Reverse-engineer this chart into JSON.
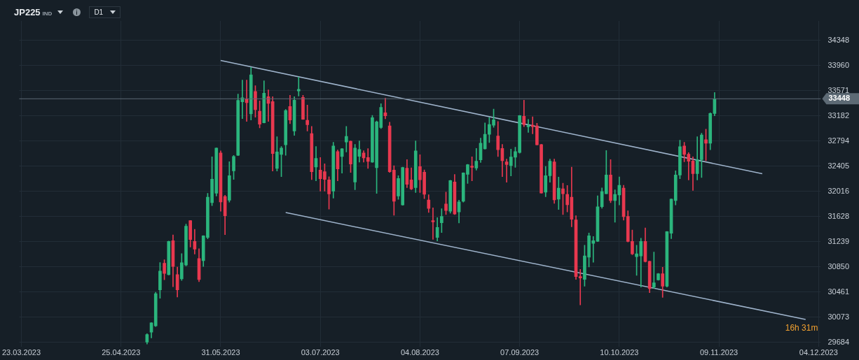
{
  "chart_data": {
    "type": "candlestick",
    "title": "JP225",
    "subtitle": "IND",
    "annotations": [
      "D1",
      "16h 31m"
    ],
    "categories": [
      "23.03.2023",
      null,
      null,
      null,
      null,
      null,
      null,
      null,
      null,
      null,
      null,
      null,
      null,
      null,
      null,
      null,
      null,
      null,
      null,
      null,
      null,
      null,
      null,
      "25.04.2023",
      null,
      null,
      null,
      null,
      null,
      null,
      null,
      null,
      null,
      null,
      null,
      null,
      null,
      null,
      null,
      null,
      null,
      null,
      null,
      null,
      null,
      null,
      "31.05.2023",
      null,
      null,
      null,
      null,
      null,
      null,
      null,
      null,
      null,
      null,
      null,
      null,
      null,
      null,
      null,
      null,
      null,
      null,
      null,
      null,
      null,
      null,
      "03.07.2023",
      null,
      null,
      null,
      null,
      null,
      null,
      null,
      null,
      null,
      null,
      null,
      null,
      null,
      null,
      null,
      null,
      null,
      null,
      null,
      null,
      null,
      null,
      "04.08.2023",
      null,
      null,
      null,
      null,
      null,
      null,
      null,
      null,
      null,
      null,
      null,
      null,
      null,
      null,
      null,
      null,
      null,
      null,
      null,
      null,
      null,
      null,
      "07.09.2023",
      null,
      null,
      null,
      null,
      null,
      null,
      null,
      null,
      null,
      null,
      null,
      null,
      null,
      null,
      null,
      null,
      null,
      null,
      null,
      null,
      null,
      null,
      "10.10.2023",
      null,
      null,
      null,
      null,
      null,
      null,
      null,
      null,
      null,
      null,
      null,
      null,
      null,
      null,
      null,
      null,
      null,
      null,
      null,
      null,
      null,
      null,
      "09.11.2023",
      null,
      null,
      null,
      null,
      null,
      null,
      null,
      null,
      null,
      null,
      null,
      null,
      null,
      null,
      null,
      null,
      null,
      null,
      null,
      null,
      null,
      null,
      "04.12.2023"
    ],
    "ylim": [
      29620,
      34650
    ],
    "yticks": [
      29684,
      30073,
      30461,
      30850,
      31239,
      31628,
      32016,
      32405,
      32794,
      33182,
      33571,
      33960,
      34348
    ],
    "grid": true,
    "legend": false,
    "marker": "none",
    "ref_lines": [
      {
        "axis": "y",
        "value": 33448,
        "label": "33448",
        "color": "#5d6a75"
      }
    ],
    "series": [
      {
        "ohlc": [
          null,
          null,
          null,
          null,
          null,
          null,
          null,
          null,
          null,
          null,
          null,
          null,
          null,
          null,
          null,
          null,
          null,
          null,
          null,
          null,
          null,
          null,
          null,
          null,
          null,
          null,
          null,
          null,
          null,
          [
            29690,
            29820,
            29660,
            29806
          ],
          [
            29844,
            29990,
            29755,
            29987
          ],
          [
            29940,
            30460,
            29930,
            30438
          ],
          [
            30495,
            30918,
            30367,
            30787
          ],
          [
            30908,
            30961,
            30652,
            30751
          ],
          [
            30730,
            31250,
            30725,
            31246
          ],
          [
            31256,
            31345,
            30545,
            30858
          ],
          [
            30733,
            30847,
            30385,
            30495
          ],
          [
            30666,
            31057,
            30641,
            30915
          ],
          [
            30879,
            31512,
            30865,
            31480
          ],
          [
            31566,
            31570,
            31157,
            31274
          ],
          [
            31246,
            31431,
            31050,
            31125
          ],
          [
            30979,
            31132,
            30623,
            30655
          ],
          [
            30947,
            31335,
            30858,
            31331
          ],
          [
            31306,
            31986,
            31285,
            31929
          ],
          [
            31843,
            32551,
            31797,
            32206
          ],
          [
            31989,
            32690,
            31946,
            32686
          ],
          [
            32612,
            32644,
            31712,
            31854
          ],
          [
            31939,
            31957,
            31349,
            31640
          ],
          [
            31882,
            32476,
            31850,
            32259
          ],
          [
            32334,
            32572,
            32202,
            32558
          ],
          [
            32576,
            33522,
            32570,
            33423
          ],
          [
            33401,
            33736,
            33142,
            33465
          ],
          [
            33447,
            33736,
            33099,
            33387
          ],
          [
            33216,
            33935,
            33120,
            33817
          ],
          [
            33561,
            33650,
            33163,
            33280
          ],
          [
            33255,
            33415,
            32999,
            33056
          ],
          [
            33078,
            33725,
            33075,
            33533
          ],
          [
            33479,
            33586,
            33099,
            33376
          ],
          [
            33405,
            33479,
            32331,
            32601
          ],
          [
            32373,
            32861,
            32331,
            32626
          ],
          [
            32587,
            32711,
            32245,
            32686
          ],
          [
            32736,
            33284,
            32576,
            33266
          ],
          [
            33330,
            33501,
            33063,
            33120
          ],
          [
            32949,
            33479,
            32882,
            33426
          ],
          [
            33568,
            33782,
            33490,
            33593
          ],
          [
            33469,
            33501,
            33128,
            33131
          ],
          [
            33117,
            33351,
            32949,
            33046
          ],
          [
            32910,
            33021,
            32199,
            32320
          ],
          [
            32395,
            32711,
            32181,
            32526
          ],
          [
            32345,
            32540,
            32021,
            32213
          ],
          [
            32323,
            32444,
            32021,
            32202
          ],
          [
            32195,
            32245,
            31744,
            31978
          ],
          [
            32021,
            32775,
            31914,
            32718
          ],
          [
            32633,
            32657,
            32181,
            32363
          ],
          [
            32555,
            32680,
            32299,
            32676
          ],
          [
            32779,
            33021,
            32626,
            32868
          ],
          [
            32793,
            32797,
            32309,
            32441
          ],
          [
            32163,
            32743,
            32042,
            32686
          ],
          [
            32558,
            32797,
            32469,
            32665
          ],
          [
            32612,
            32647,
            32469,
            32533
          ],
          [
            32540,
            32679,
            32373,
            32480
          ],
          [
            32469,
            33191,
            32465,
            33156
          ],
          [
            32384,
            33106,
            31986,
            33092
          ],
          [
            33003,
            33373,
            32989,
            33316
          ],
          [
            33231,
            33459,
            33138,
            33185
          ],
          [
            33028,
            33085,
            32310,
            32320
          ],
          [
            32345,
            32413,
            31648,
            31865
          ],
          [
            31947,
            32260,
            31894,
            32217
          ],
          [
            31808,
            32392,
            31804,
            32388
          ],
          [
            32377,
            32509,
            32075,
            32128
          ],
          [
            32196,
            32381,
            32043,
            32054
          ],
          [
            32075,
            32797,
            32000,
            32644
          ],
          [
            32399,
            32584,
            32000,
            32196
          ],
          [
            32313,
            32349,
            31904,
            31972
          ],
          [
            31886,
            31965,
            31691,
            31755
          ],
          [
            31566,
            31762,
            31275,
            31545
          ],
          [
            31307,
            31613,
            31253,
            31460
          ],
          [
            31534,
            31751,
            31381,
            31630
          ],
          [
            31822,
            32007,
            31659,
            31723
          ],
          [
            31712,
            32190,
            31680,
            32185
          ],
          [
            32164,
            32278,
            31659,
            31669
          ],
          [
            31701,
            31883,
            31531,
            31854
          ],
          [
            31865,
            32307,
            31851,
            32303
          ],
          [
            32281,
            32435,
            32139,
            32431
          ],
          [
            32409,
            32552,
            32182,
            32388
          ],
          [
            32377,
            32680,
            32345,
            32484
          ],
          [
            32505,
            32840,
            32463,
            32761
          ],
          [
            32676,
            33074,
            32670,
            32900
          ],
          [
            32900,
            33160,
            32772,
            33050
          ],
          [
            33039,
            33288,
            33007,
            33124
          ],
          [
            32872,
            33096,
            32555,
            32662
          ],
          [
            32680,
            32744,
            32246,
            32491
          ],
          [
            32473,
            32516,
            32160,
            32431
          ],
          [
            32416,
            32669,
            32256,
            32548
          ],
          [
            32544,
            32701,
            32388,
            32633
          ],
          [
            32619,
            33192,
            32608,
            33188
          ],
          [
            33178,
            33427,
            33018,
            33050
          ],
          [
            33014,
            33128,
            32929,
            33035
          ],
          [
            33039,
            33170,
            32907,
            33018
          ],
          [
            33028,
            33071,
            32735,
            32737
          ],
          [
            32740,
            32745,
            31990,
            31993
          ],
          [
            32004,
            32402,
            31936,
            32260
          ],
          [
            32260,
            32516,
            32160,
            32484
          ],
          [
            32473,
            32516,
            31833,
            31886
          ],
          [
            31897,
            32239,
            31737,
            32068
          ],
          [
            32057,
            32143,
            31659,
            31982
          ],
          [
            31972,
            32110,
            31701,
            31812
          ],
          [
            31929,
            32392,
            31470,
            31588
          ],
          [
            31577,
            31641,
            30659,
            30702
          ],
          [
            30702,
            30812,
            30264,
            30681
          ],
          [
            30659,
            31186,
            30552,
            31022
          ],
          [
            31001,
            31374,
            30851,
            31332
          ],
          [
            31214,
            31321,
            30922,
            31257
          ],
          [
            31246,
            31950,
            31240,
            31780
          ],
          [
            31780,
            32071,
            31758,
            32014
          ],
          [
            31982,
            32648,
            31980,
            32271
          ],
          [
            32271,
            32509,
            31844,
            31876
          ],
          [
            31876,
            32040,
            31541,
            31972
          ],
          [
            31961,
            32242,
            31808,
            32111
          ],
          [
            32068,
            32111,
            31574,
            31627
          ],
          [
            31631,
            31716,
            31235,
            31243
          ],
          [
            31246,
            31421,
            31040,
            31051
          ],
          [
            31008,
            31186,
            30720,
            31054
          ],
          [
            31019,
            31293,
            30539,
            31246
          ],
          [
            31246,
            31453,
            30924,
            30933
          ],
          [
            30937,
            30940,
            30453,
            30514
          ],
          [
            30539,
            31079,
            30517,
            30606
          ],
          [
            30649,
            30750,
            30645,
            30745
          ],
          [
            30745,
            30844,
            30379,
            30553
          ],
          [
            30553,
            31400,
            30539,
            31396
          ],
          [
            31371,
            31900,
            31286,
            31897
          ],
          [
            31876,
            32335,
            31808,
            32271
          ],
          [
            32271,
            32808,
            32214,
            32708
          ],
          [
            32719,
            32776,
            32474,
            32587
          ],
          [
            32591,
            32616,
            32193,
            32484
          ],
          [
            32488,
            32552,
            32033,
            32292
          ],
          [
            32292,
            32861,
            32193,
            32506
          ],
          [
            32506,
            32915,
            32232,
            32890
          ],
          [
            32815,
            32979,
            32491,
            32762
          ],
          [
            32762,
            33231,
            32662,
            33221
          ],
          [
            33221,
            33544,
            33185,
            33448
          ],
          null,
          null,
          null,
          null,
          null,
          null,
          null,
          null,
          null,
          null,
          null,
          null,
          null,
          null,
          null,
          null,
          null,
          null,
          null,
          null,
          null,
          null,
          null,
          null
        ],
        "colors": [
          null,
          null,
          null,
          null,
          null,
          null,
          null,
          null,
          null,
          null,
          null,
          null,
          null,
          null,
          null,
          null,
          null,
          null,
          null,
          null,
          null,
          null,
          null,
          null,
          null,
          null,
          null,
          null,
          null,
          "#2bb57d",
          "#2bb57d",
          "#2bb57d",
          "#2bb57d",
          "#e8384f",
          "#2bb57d",
          "#e8384f",
          "#e8384f",
          "#2bb57d",
          "#2bb57d",
          "#e8384f",
          "#e8384f",
          "#e8384f",
          "#2bb57d",
          "#2bb57d",
          "#2bb57d",
          "#2bb57d",
          "#e8384f",
          "#e8384f",
          "#2bb57d",
          "#2bb57d",
          "#2bb57d",
          "#2bb57d",
          "#e8384f",
          "#2bb57d",
          "#e8384f",
          "#e8384f",
          "#2bb57d",
          "#e8384f",
          "#e8384f",
          "#2bb57d",
          "#2bb57d",
          "#2bb57d",
          "#e8384f",
          "#2bb57d",
          "#2bb57d",
          "#e8384f",
          "#e8384f",
          "#e8384f",
          "#2bb57d",
          "#e8384f",
          "#e8384f",
          "#e8384f",
          "#2bb57d",
          "#e8384f",
          "#2bb57d",
          "#2bb57d",
          "#e8384f",
          "#2bb57d",
          "#2bb57d",
          "#e8384f",
          "#e8384f",
          "#2bb57d",
          "#2bb57d",
          "#2bb57d",
          "#e8384f",
          "#e8384f",
          "#e8384f",
          "#2bb57d",
          "#2bb57d",
          "#e8384f",
          "#e8384f",
          "#2bb57d",
          "#e8384f",
          "#e8384f",
          "#e8384f",
          "#e8384f",
          "#2bb57d",
          "#2bb57d",
          "#e8384f",
          "#2bb57d",
          "#e8384f",
          "#2bb57d",
          "#2bb57d",
          "#2bb57d",
          "#e8384f",
          "#2bb57d",
          "#2bb57d",
          "#2bb57d",
          "#2bb57d",
          "#2bb57d",
          "#e8384f",
          "#e8384f",
          "#e8384f",
          "#2bb57d",
          "#2bb57d",
          "#2bb57d",
          "#e8384f",
          "#2bb57d",
          "#e8384f",
          "#e8384f",
          "#e8384f",
          "#2bb57d",
          "#2bb57d",
          "#e8384f",
          "#2bb57d",
          "#e8384f",
          "#e8384f",
          "#e8384f",
          "#e8384f",
          "#e8384f",
          "#2bb57d",
          "#2bb57d",
          "#2bb57d",
          "#2bb57d",
          "#2bb57d",
          "#2bb57d",
          "#e8384f",
          "#2bb57d",
          "#2bb57d",
          "#e8384f",
          "#e8384f",
          "#e8384f",
          "#2bb57d",
          "#2bb57d",
          "#e8384f",
          "#e8384f",
          "#2bb57d",
          "#2bb57d",
          "#e8384f",
          "#2bb57d",
          "#2bb57d",
          "#2bb57d",
          "#2bb57d",
          "#e8384f",
          "#e8384f",
          "#e8384f",
          "#2bb57d",
          "#2bb57d",
          "#e8384f",
          "#2bb57d",
          "#2bb57d",
          null,
          null,
          null,
          null,
          null,
          null,
          null,
          null,
          null,
          null,
          null,
          null,
          null,
          null,
          null,
          null,
          null,
          null,
          null,
          null,
          null,
          null,
          null,
          null
        ]
      },
      {
        "type": "line",
        "color": "#9fb4cc",
        "values": [
          null,
          null,
          null,
          null,
          null,
          null,
          null,
          null,
          null,
          null,
          null,
          null,
          null,
          null,
          null,
          null,
          null,
          null,
          null,
          null,
          null,
          null,
          null,
          null,
          null,
          null,
          null,
          null,
          null,
          null,
          null,
          null,
          null,
          null,
          null,
          null,
          null,
          null,
          null,
          null,
          null,
          null,
          null,
          null,
          null,
          null,
          34040,
          null,
          null,
          null,
          null,
          null,
          null,
          null,
          null,
          null,
          null,
          null,
          null,
          null,
          null,
          null,
          null,
          null,
          null,
          null,
          null,
          null,
          null,
          null,
          null,
          null,
          null,
          null,
          null,
          null,
          null,
          null,
          null,
          null,
          null,
          null,
          null,
          null,
          null,
          null,
          null,
          null,
          null,
          null,
          null,
          null,
          null,
          null,
          null,
          null,
          null,
          null,
          null,
          null,
          null,
          null,
          null,
          null,
          null,
          null,
          null,
          null,
          null,
          null,
          null,
          null,
          null,
          null,
          null,
          null,
          null,
          null,
          null,
          null,
          null,
          null,
          null,
          null,
          null,
          null,
          null,
          null,
          null,
          null,
          null,
          null,
          null,
          null,
          null,
          null,
          null,
          null,
          null,
          null,
          null,
          null,
          null,
          null,
          null,
          null,
          null,
          null,
          null,
          null,
          null,
          null,
          null,
          null,
          null,
          null,
          null,
          null,
          null,
          null,
          null,
          null,
          null,
          null,
          null,
          null,
          null,
          null,
          null,
          null,
          null,
          32290,
          null,
          null,
          null,
          null,
          null,
          null,
          null,
          null,
          null,
          null,
          null,
          null,
          null
        ]
      },
      {
        "type": "line",
        "color": "#9fb4cc",
        "values": [
          null,
          null,
          null,
          null,
          null,
          null,
          null,
          null,
          null,
          null,
          null,
          null,
          null,
          null,
          null,
          null,
          null,
          null,
          null,
          null,
          null,
          null,
          null,
          null,
          null,
          null,
          null,
          null,
          null,
          null,
          null,
          null,
          null,
          null,
          null,
          null,
          null,
          null,
          null,
          null,
          null,
          null,
          null,
          null,
          null,
          null,
          null,
          null,
          null,
          null,
          null,
          null,
          null,
          null,
          null,
          null,
          null,
          null,
          null,
          null,
          null,
          31690,
          null,
          null,
          null,
          null,
          null,
          null,
          null,
          null,
          null,
          null,
          null,
          null,
          null,
          null,
          null,
          null,
          null,
          null,
          null,
          null,
          null,
          null,
          null,
          null,
          null,
          null,
          null,
          null,
          null,
          null,
          null,
          null,
          null,
          null,
          null,
          null,
          null,
          null,
          null,
          null,
          null,
          null,
          null,
          null,
          null,
          null,
          null,
          null,
          null,
          null,
          null,
          null,
          null,
          null,
          null,
          null,
          null,
          null,
          null,
          null,
          null,
          null,
          null,
          null,
          null,
          null,
          null,
          null,
          null,
          null,
          null,
          null,
          null,
          null,
          null,
          null,
          null,
          null,
          null,
          null,
          null,
          null,
          null,
          null,
          null,
          null,
          null,
          null,
          null,
          null,
          null,
          null,
          null,
          null,
          null,
          null,
          null,
          null,
          null,
          null,
          null,
          null,
          null,
          null,
          null,
          null,
          null,
          null,
          null,
          null,
          null,
          null,
          null,
          null,
          null,
          null,
          null,
          null,
          null,
          30040,
          null,
          null,
          null
        ]
      }
    ]
  }
}
